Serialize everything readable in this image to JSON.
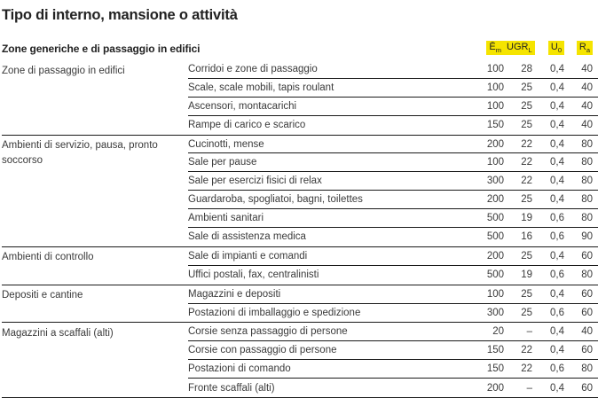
{
  "title": "Tipo di interno, mansione o attività",
  "table": {
    "section_header": "Zone generiche e di passaggio in edifici",
    "highlight_color": "#f5e400",
    "columns": [
      {
        "main": "Ē",
        "sub": "m"
      },
      {
        "main": "UGR",
        "sub": "L"
      },
      {
        "main": "U",
        "sub": "0"
      },
      {
        "main": "R",
        "sub": "a"
      }
    ],
    "groups": [
      {
        "label": "Zone di passaggio in edifici",
        "rows": [
          {
            "activity": "Corridoi e zone di passaggio",
            "em": "100",
            "ugr": "28",
            "uo": "0,4",
            "ra": "40"
          },
          {
            "activity": "Scale, scale mobili, tapis roulant",
            "em": "100",
            "ugr": "25",
            "uo": "0,4",
            "ra": "40"
          },
          {
            "activity": "Ascensori, montacarichi",
            "em": "100",
            "ugr": "25",
            "uo": "0,4",
            "ra": "40"
          },
          {
            "activity": "Rampe di carico e scarico",
            "em": "150",
            "ugr": "25",
            "uo": "0,4",
            "ra": "40"
          }
        ]
      },
      {
        "label": "Ambienti di servizio, pausa, pronto soccorso",
        "rows": [
          {
            "activity": "Cucinotti, mense",
            "em": "200",
            "ugr": "22",
            "uo": "0,4",
            "ra": "80"
          },
          {
            "activity": "Sale per pause",
            "em": "100",
            "ugr": "22",
            "uo": "0,4",
            "ra": "80"
          },
          {
            "activity": "Sale per esercizi fisici di relax",
            "em": "300",
            "ugr": "22",
            "uo": "0,4",
            "ra": "80"
          },
          {
            "activity": "Guardaroba, spogliatoi, bagni, toilettes",
            "em": "200",
            "ugr": "25",
            "uo": "0,4",
            "ra": "80"
          },
          {
            "activity": "Ambienti sanitari",
            "em": "500",
            "ugr": "19",
            "uo": "0,6",
            "ra": "80"
          },
          {
            "activity": "Sale di assistenza medica",
            "em": "500",
            "ugr": "16",
            "uo": "0,6",
            "ra": "90"
          }
        ]
      },
      {
        "label": "Ambienti di controllo",
        "rows": [
          {
            "activity": "Sale di impianti e comandi",
            "em": "200",
            "ugr": "25",
            "uo": "0,4",
            "ra": "60"
          },
          {
            "activity": "Uffici postali, fax, centralinisti",
            "em": "500",
            "ugr": "19",
            "uo": "0,6",
            "ra": "80"
          }
        ]
      },
      {
        "label": "Depositi e cantine",
        "rows": [
          {
            "activity": "Magazzini e depositi",
            "em": "100",
            "ugr": "25",
            "uo": "0,4",
            "ra": "60"
          },
          {
            "activity": "Postazioni di imballaggio e spedizione",
            "em": "300",
            "ugr": "25",
            "uo": "0,6",
            "ra": "60"
          }
        ]
      },
      {
        "label": "Magazzini a scaffali (alti)",
        "rows": [
          {
            "activity": "Corsie senza passaggio di persone",
            "em": "20",
            "ugr": "–",
            "uo": "0,4",
            "ra": "40"
          },
          {
            "activity": "Corsie con passaggio di persone",
            "em": "150",
            "ugr": "22",
            "uo": "0,4",
            "ra": "60"
          },
          {
            "activity": "Postazioni di comando",
            "em": "150",
            "ugr": "22",
            "uo": "0,6",
            "ra": "80"
          },
          {
            "activity": "Fronte scaffali (alti)",
            "em": "200",
            "ugr": "–",
            "uo": "0,4",
            "ra": "60"
          }
        ]
      }
    ]
  }
}
